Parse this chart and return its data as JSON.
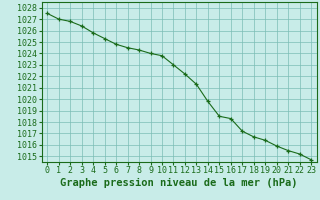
{
  "x": [
    0,
    1,
    2,
    3,
    4,
    5,
    6,
    7,
    8,
    9,
    10,
    11,
    12,
    13,
    14,
    15,
    16,
    17,
    18,
    19,
    20,
    21,
    22,
    23
  ],
  "y": [
    1027.5,
    1027.0,
    1026.8,
    1026.4,
    1025.8,
    1025.3,
    1024.8,
    1024.5,
    1024.3,
    1024.0,
    1023.8,
    1023.0,
    1022.2,
    1021.3,
    1019.8,
    1018.5,
    1018.3,
    1017.2,
    1016.7,
    1016.4,
    1015.9,
    1015.5,
    1015.2,
    1014.7
  ],
  "line_color": "#1a6b1a",
  "marker": "+",
  "bg_color": "#c8ece8",
  "grid_color": "#7bbdb5",
  "xlabel": "Graphe pression niveau de la mer (hPa)",
  "ylabel": "",
  "ylim": [
    1014.5,
    1028.5
  ],
  "xlim": [
    -0.5,
    23.5
  ],
  "yticks": [
    1015,
    1016,
    1017,
    1018,
    1019,
    1020,
    1021,
    1022,
    1023,
    1024,
    1025,
    1026,
    1027,
    1028
  ],
  "xticks": [
    0,
    1,
    2,
    3,
    4,
    5,
    6,
    7,
    8,
    9,
    10,
    11,
    12,
    13,
    14,
    15,
    16,
    17,
    18,
    19,
    20,
    21,
    22,
    23
  ],
  "tick_fontsize": 6.0,
  "xlabel_fontsize": 7.5,
  "label_color": "#1a6b1a",
  "spine_color": "#1a6b1a"
}
